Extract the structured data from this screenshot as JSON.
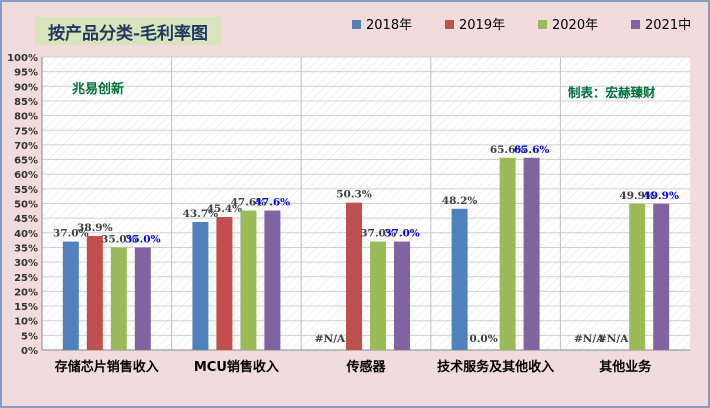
{
  "chart_data": {
    "type": "bar",
    "title": "按产品分类-毛利率图",
    "categories": [
      "存储芯片销售收入",
      "MCU销售收入",
      "传感器",
      "技术服务及其他收入",
      "其他业务"
    ],
    "series": [
      {
        "name": "2018年",
        "color": "#4f81bd",
        "values": [
          37.0,
          43.7,
          null,
          48.2,
          null
        ],
        "labels": [
          "37.0%",
          "43.7%",
          "#N/A",
          "48.2%",
          "#N/A"
        ]
      },
      {
        "name": "2019年",
        "color": "#c0504d",
        "values": [
          38.9,
          45.4,
          50.3,
          0.0,
          null
        ],
        "labels": [
          "38.9%",
          "45.4%",
          "50.3%",
          "0.0%",
          "#N/A"
        ]
      },
      {
        "name": "2020年",
        "color": "#9bbb59",
        "values": [
          35.0,
          47.6,
          37.0,
          65.6,
          49.9
        ],
        "labels": [
          "35.0%",
          "47.6%",
          "37.0%",
          "65.6%",
          "49.9%"
        ]
      },
      {
        "name": "2021中",
        "color": "#8064a2",
        "values": [
          35.0,
          47.6,
          37.0,
          65.6,
          49.9
        ],
        "labels": [
          "35.0%",
          "47.6%",
          "37.0%",
          "65.6%",
          "49.9%"
        ]
      }
    ],
    "y_ticks": [
      "0%",
      "5%",
      "10%",
      "15%",
      "20%",
      "25%",
      "30%",
      "35%",
      "40%",
      "45%",
      "50%",
      "55%",
      "60%",
      "65%",
      "70%",
      "75%",
      "80%",
      "85%",
      "90%",
      "95%",
      "100%"
    ],
    "ylim": [
      0,
      100
    ],
    "grid": true,
    "legend_position": "top-right",
    "annotations": {
      "left": "兆易创新",
      "right": "制表：宏赫臻财"
    }
  }
}
